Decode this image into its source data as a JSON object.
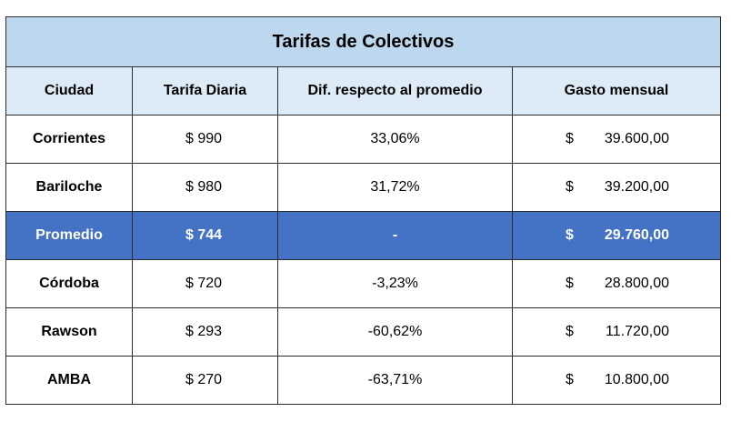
{
  "table": {
    "title": "Tarifas de Colectivos",
    "headers": [
      "Ciudad",
      "Tarifa Diaria",
      "Dif. respecto al promedio",
      "Gasto mensual"
    ],
    "rows": [
      {
        "ciudad": "Corrientes",
        "tarifa": "$ 990",
        "dif": "33,06%",
        "currency": "$",
        "gasto": "39.600,00"
      },
      {
        "ciudad": "Bariloche",
        "tarifa": "$ 980",
        "dif": "31,72%",
        "currency": "$",
        "gasto": "39.200,00"
      },
      {
        "ciudad": "Promedio",
        "tarifa": "$ 744",
        "dif": "-",
        "currency": "$",
        "gasto": "29.760,00",
        "highlight": true
      },
      {
        "ciudad": "Córdoba",
        "tarifa": "$ 720",
        "dif": "-3,23%",
        "currency": "$",
        "gasto": "28.800,00"
      },
      {
        "ciudad": "Rawson",
        "tarifa": "$ 293",
        "dif": "-60,62%",
        "currency": "$",
        "gasto": "11.720,00"
      },
      {
        "ciudad": "AMBA",
        "tarifa": "$ 270",
        "dif": "-63,71%",
        "currency": "$",
        "gasto": "10.800,00"
      }
    ]
  },
  "colors": {
    "title_bg": "#bdd7ee",
    "header_bg": "#ddebf7",
    "highlight_bg": "#4472c4",
    "highlight_text": "#ffffff",
    "border": "#2b2b2b"
  }
}
